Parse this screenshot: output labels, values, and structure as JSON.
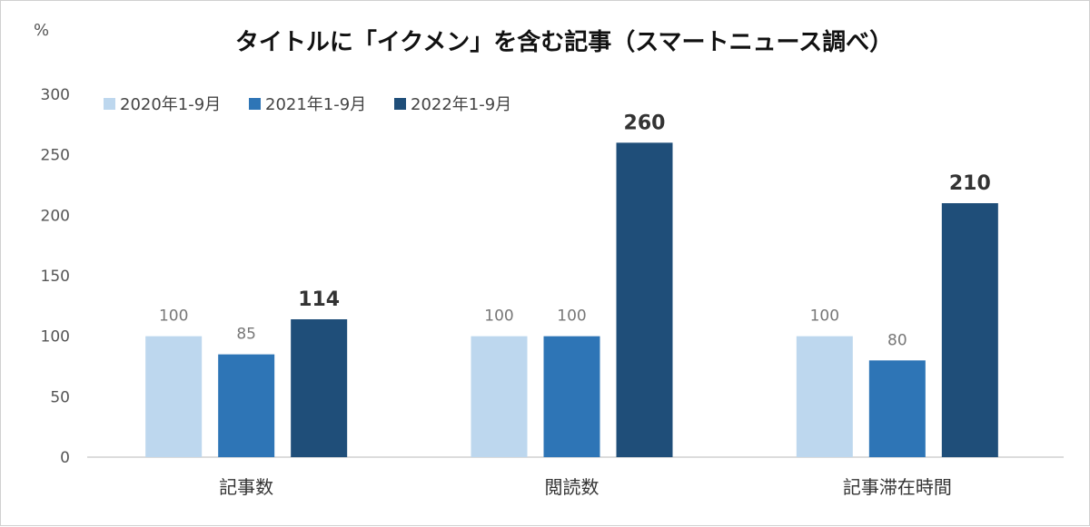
{
  "chart_data": {
    "type": "bar",
    "title": "タイトルに「イクメン」を含む記事（スマートニュース調べ）",
    "ylabel": "%",
    "xlabel": "",
    "categories": [
      "記事数",
      "閲読数",
      "記事滞在時間"
    ],
    "series": [
      {
        "name": "2020年1-9月",
        "values": [
          100,
          100,
          100
        ],
        "color": "#bdd7ee"
      },
      {
        "name": "2021年1-9月",
        "values": [
          85,
          100,
          80
        ],
        "color": "#2e75b6"
      },
      {
        "name": "2022年1-9月",
        "values": [
          114,
          260,
          210
        ],
        "color": "#1f4e79"
      }
    ],
    "ylim": [
      0,
      300
    ],
    "yticks": [
      0,
      50,
      100,
      150,
      200,
      250,
      300
    ],
    "grid": false,
    "legend_position": "top-left",
    "bold_series_labels": "2022年1-9月"
  }
}
